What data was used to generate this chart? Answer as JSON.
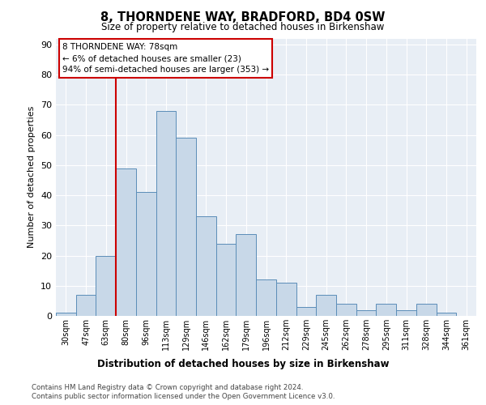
{
  "title": "8, THORNDENE WAY, BRADFORD, BD4 0SW",
  "subtitle": "Size of property relative to detached houses in Birkenshaw",
  "xlabel": "Distribution of detached houses by size in Birkenshaw",
  "ylabel": "Number of detached properties",
  "bar_labels": [
    "30sqm",
    "47sqm",
    "63sqm",
    "80sqm",
    "96sqm",
    "113sqm",
    "129sqm",
    "146sqm",
    "162sqm",
    "179sqm",
    "196sqm",
    "212sqm",
    "229sqm",
    "245sqm",
    "262sqm",
    "278sqm",
    "295sqm",
    "311sqm",
    "328sqm",
    "344sqm",
    "361sqm"
  ],
  "bar_values": [
    1,
    7,
    20,
    49,
    41,
    68,
    59,
    33,
    24,
    27,
    12,
    11,
    3,
    7,
    4,
    2,
    4,
    2,
    4,
    1,
    0
  ],
  "bar_color": "#c8d8e8",
  "bar_edge_color": "#5b8db8",
  "annotation_text_line1": "8 THORNDENE WAY: 78sqm",
  "annotation_text_line2": "← 6% of detached houses are smaller (23)",
  "annotation_text_line3": "94% of semi-detached houses are larger (353) →",
  "vline_color": "#cc0000",
  "vline_x": 2.5,
  "ylim": [
    0,
    92
  ],
  "yticks": [
    0,
    10,
    20,
    30,
    40,
    50,
    60,
    70,
    80,
    90
  ],
  "footer1": "Contains HM Land Registry data © Crown copyright and database right 2024.",
  "footer2": "Contains public sector information licensed under the Open Government Licence v3.0.",
  "plot_bg_color": "#e8eef5"
}
